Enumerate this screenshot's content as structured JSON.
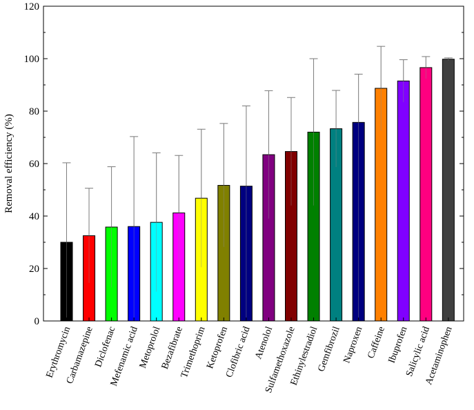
{
  "chart_data": {
    "type": "bar",
    "title": "",
    "xlabel": "",
    "ylabel": "Removal efficiency (%)",
    "ylim": [
      0,
      120
    ],
    "yticks": [
      0,
      20,
      40,
      60,
      80,
      100,
      120
    ],
    "grid": false,
    "categories": [
      "Erythromycin",
      "Carbamazepine",
      "Diclofenac",
      "Mefenamic acid",
      "Metoprolol",
      "Bezafibrate",
      "Trimethoprim",
      "Ketoprofen",
      "Clofibric acid",
      "Atenolol",
      "Sulfamethoxazole",
      "Ethinylestradiol",
      "Gemfibrozil",
      "Naproxen",
      "Caffeine",
      "Ibuprofen",
      "Salicylic acid",
      "Acetaminophen"
    ],
    "values": [
      30,
      32.5,
      35.8,
      36,
      37.6,
      41.2,
      46.8,
      51.7,
      51.4,
      63.4,
      64.6,
      72,
      73.3,
      75.7,
      88.7,
      91.5,
      96.6,
      99.8
    ],
    "error_upper": [
      60.3,
      50.6,
      58.8,
      70.3,
      64.1,
      63.1,
      73.1,
      75.3,
      82,
      87.8,
      85.2,
      100,
      87.9,
      94.1,
      104.7,
      99.6,
      100.8,
      100.3
    ],
    "error_lower": [
      0,
      14.5,
      12.8,
      0,
      11.2,
      19.4,
      20.5,
      28.2,
      0,
      39,
      44,
      44,
      58.7,
      0,
      72.6,
      83.4,
      92.4,
      99.3
    ],
    "colors": [
      "#000000",
      "#ff0000",
      "#00ff00",
      "#0000ff",
      "#00ffff",
      "#ff00ff",
      "#ffff00",
      "#808000",
      "#000080",
      "#800080",
      "#800000",
      "#008000",
      "#008080",
      "#000080",
      "#ff8000",
      "#8000ff",
      "#ff0080",
      "#404040"
    ]
  }
}
